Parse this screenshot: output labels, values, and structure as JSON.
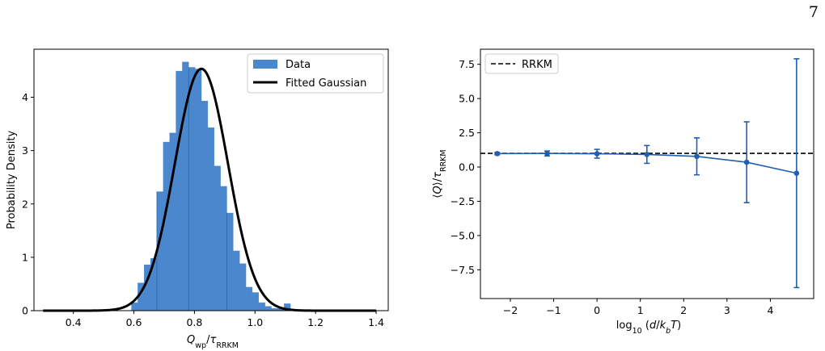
{
  "page": {
    "page_number": "7"
  },
  "chart_data": [
    {
      "type": "bar",
      "subtype": "histogram",
      "xlabel": "Q_wp/τ_RRKM",
      "ylabel": "Probability Density",
      "xlim": [
        0.27,
        1.44
      ],
      "ylim": [
        0,
        4.9
      ],
      "xticks": [
        0.4,
        0.6,
        0.8,
        1.0,
        1.2,
        1.4
      ],
      "xtick_labels": [
        "0.4",
        "0.6",
        "0.8",
        "1.0",
        "1.2",
        "1.4"
      ],
      "yticks": [
        0,
        1,
        2,
        3,
        4
      ],
      "ytick_labels": [
        "0",
        "1",
        "2",
        "3",
        "4"
      ],
      "bin_width": 0.021,
      "bins": [
        {
          "left": 0.592,
          "value": 0.15
        },
        {
          "left": 0.613,
          "value": 0.52
        },
        {
          "left": 0.634,
          "value": 0.86
        },
        {
          "left": 0.655,
          "value": 0.98
        },
        {
          "left": 0.676,
          "value": 2.23
        },
        {
          "left": 0.697,
          "value": 3.16
        },
        {
          "left": 0.718,
          "value": 3.33
        },
        {
          "left": 0.739,
          "value": 4.49
        },
        {
          "left": 0.76,
          "value": 4.66
        },
        {
          "left": 0.781,
          "value": 4.56
        },
        {
          "left": 0.802,
          "value": 4.53
        },
        {
          "left": 0.823,
          "value": 3.93
        },
        {
          "left": 0.844,
          "value": 3.43
        },
        {
          "left": 0.865,
          "value": 2.71
        },
        {
          "left": 0.886,
          "value": 2.33
        },
        {
          "left": 0.907,
          "value": 1.83
        },
        {
          "left": 0.928,
          "value": 1.12
        },
        {
          "left": 0.949,
          "value": 0.88
        },
        {
          "left": 0.97,
          "value": 0.44
        },
        {
          "left": 0.991,
          "value": 0.34
        },
        {
          "left": 1.012,
          "value": 0.15
        },
        {
          "left": 1.033,
          "value": 0.08
        },
        {
          "left": 1.054,
          "value": 0.04
        },
        {
          "left": 1.075,
          "value": 0.04
        },
        {
          "left": 1.096,
          "value": 0.13
        }
      ],
      "fit": {
        "type": "gaussian",
        "mean": 0.823,
        "std": 0.088,
        "x_range": [
          0.3,
          1.4
        ]
      },
      "series": [
        {
          "name": "Data",
          "color": "#4a87cd",
          "kind": "histogram"
        },
        {
          "name": "Fitted Gaussian",
          "color": "#000000",
          "kind": "line"
        }
      ],
      "legend": "top-right",
      "grid": false
    },
    {
      "type": "line",
      "subtype": "errorbar",
      "xlabel": "log_10(d/k_bT)",
      "ylabel": "⟨Q⟩/τ_RRKM",
      "xlim": [
        -2.69,
        5.0
      ],
      "ylim": [
        -9.6,
        8.6
      ],
      "xticks": [
        -2,
        -1,
        0,
        1,
        2,
        3,
        4
      ],
      "xtick_labels": [
        "−2",
        "−1",
        "0",
        "1",
        "2",
        "3",
        "4"
      ],
      "yticks": [
        -7.5,
        -5.0,
        -2.5,
        0.0,
        2.5,
        5.0,
        7.5
      ],
      "ytick_labels": [
        "−7.5",
        "−5.0",
        "−2.5",
        "0.0",
        "2.5",
        "5.0",
        "7.5"
      ],
      "series": [
        {
          "name": "",
          "color": "#1f5fae",
          "x": [
            -2.303,
            -1.151,
            0.0,
            1.151,
            2.303,
            3.454,
            4.605
          ],
          "y": [
            0.98,
            0.99,
            0.97,
            0.92,
            0.78,
            0.35,
            -0.45
          ],
          "yerr": [
            0.08,
            0.18,
            0.32,
            0.65,
            1.35,
            2.95,
            8.35
          ]
        },
        {
          "name": "RRKM",
          "color": "#000000",
          "style": "dashed",
          "y_constant": 1.0
        }
      ],
      "legend": "top-left",
      "grid": false
    }
  ]
}
